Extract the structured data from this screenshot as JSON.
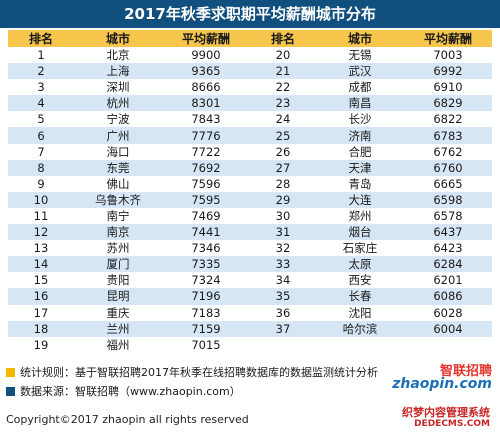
{
  "title": "2017年秋季求职期平均薪酬城市分布",
  "headers": [
    "排名",
    "城市",
    "平均薪酬",
    "排名",
    "城市",
    "平均薪酬"
  ],
  "left": [
    {
      "rank": "1",
      "city": "北京",
      "salary": "9900"
    },
    {
      "rank": "2",
      "city": "上海",
      "salary": "9365"
    },
    {
      "rank": "3",
      "city": "深圳",
      "salary": "8666"
    },
    {
      "rank": "4",
      "city": "杭州",
      "salary": "8301"
    },
    {
      "rank": "5",
      "city": "宁波",
      "salary": "7843"
    },
    {
      "rank": "6",
      "city": "广州",
      "salary": "7776"
    },
    {
      "rank": "7",
      "city": "海口",
      "salary": "7722"
    },
    {
      "rank": "8",
      "city": "东莞",
      "salary": "7692"
    },
    {
      "rank": "9",
      "city": "佛山",
      "salary": "7596"
    },
    {
      "rank": "10",
      "city": "乌鲁木齐",
      "salary": "7595"
    },
    {
      "rank": "11",
      "city": "南宁",
      "salary": "7469"
    },
    {
      "rank": "12",
      "city": "南京",
      "salary": "7441"
    },
    {
      "rank": "13",
      "city": "苏州",
      "salary": "7346"
    },
    {
      "rank": "14",
      "city": "厦门",
      "salary": "7335"
    },
    {
      "rank": "15",
      "city": "贵阳",
      "salary": "7324"
    },
    {
      "rank": "16",
      "city": "昆明",
      "salary": "7196"
    },
    {
      "rank": "17",
      "city": "重庆",
      "salary": "7183"
    },
    {
      "rank": "18",
      "city": "兰州",
      "salary": "7159"
    },
    {
      "rank": "19",
      "city": "福州",
      "salary": "7015"
    }
  ],
  "right": [
    {
      "rank": "20",
      "city": "无锡",
      "salary": "7003"
    },
    {
      "rank": "21",
      "city": "武汉",
      "salary": "6992"
    },
    {
      "rank": "22",
      "city": "成都",
      "salary": "6910"
    },
    {
      "rank": "23",
      "city": "南昌",
      "salary": "6829"
    },
    {
      "rank": "24",
      "city": "长沙",
      "salary": "6822"
    },
    {
      "rank": "25",
      "city": "济南",
      "salary": "6783"
    },
    {
      "rank": "26",
      "city": "合肥",
      "salary": "6762"
    },
    {
      "rank": "27",
      "city": "天津",
      "salary": "6760"
    },
    {
      "rank": "28",
      "city": "青岛",
      "salary": "6665"
    },
    {
      "rank": "29",
      "city": "大连",
      "salary": "6598"
    },
    {
      "rank": "30",
      "city": "郑州",
      "salary": "6578"
    },
    {
      "rank": "31",
      "city": "烟台",
      "salary": "6437"
    },
    {
      "rank": "32",
      "city": "石家庄",
      "salary": "6423"
    },
    {
      "rank": "33",
      "city": "太原",
      "salary": "6284"
    },
    {
      "rank": "34",
      "city": "西安",
      "salary": "6201"
    },
    {
      "rank": "35",
      "city": "长春",
      "salary": "6086"
    },
    {
      "rank": "36",
      "city": "沈阳",
      "salary": "6028"
    },
    {
      "rank": "37",
      "city": "哈尔滨",
      "salary": "6004"
    }
  ],
  "notes": [
    {
      "text": "统计规则：基于智联招聘2017年秋季在线招聘数据库的数据监测统计分析",
      "color": "#f5b800"
    },
    {
      "text": "数据来源：智联招聘（www.zhaopin.com）",
      "color": "#11507e"
    }
  ],
  "copyright": "Copyright©2017 zhaopin all rights reserved",
  "logo": {
    "cn": "智联招聘",
    "en": "zhaopin.com"
  },
  "watermark": {
    "line1": "织梦内容管理系统",
    "line2": "DEDECMS.COM"
  },
  "colors": {
    "title_bg": "#11507e",
    "header_bg": "#f7c64c",
    "stripe": "#d6e6f4"
  }
}
